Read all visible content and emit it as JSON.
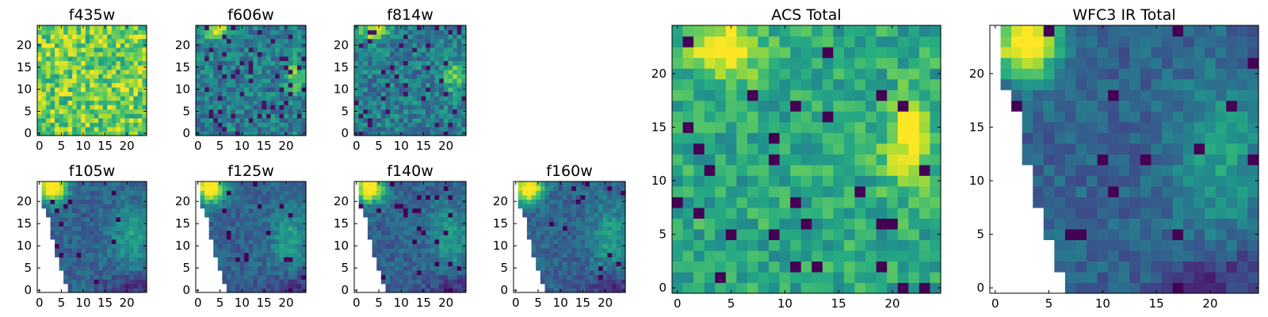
{
  "figure": {
    "colormap": "viridis",
    "colors": {
      "low": "#440154",
      "high": "#fde725",
      "missing": "#ffffff"
    }
  },
  "chart_data": [
    {
      "type": "heatmap",
      "title": "f435w",
      "xlim": [
        0,
        25
      ],
      "ylim": [
        0,
        25
      ],
      "xticks": [
        0,
        5,
        10,
        15,
        20
      ],
      "yticks": [
        0,
        5,
        10,
        15,
        20
      ],
      "pattern": "noise",
      "seed": 11
    },
    {
      "type": "heatmap",
      "title": "f606w",
      "xlim": [
        0,
        25
      ],
      "ylim": [
        0,
        25
      ],
      "xticks": [
        0,
        5,
        10,
        15,
        20
      ],
      "yticks": [
        0,
        5,
        10,
        15,
        20
      ],
      "pattern": "acs",
      "seed": 23
    },
    {
      "type": "heatmap",
      "title": "f814w",
      "xlim": [
        0,
        25
      ],
      "ylim": [
        0,
        25
      ],
      "xticks": [
        0,
        5,
        10,
        15,
        20
      ],
      "yticks": [
        0,
        5,
        10,
        15,
        20
      ],
      "pattern": "acs",
      "seed": 37
    },
    {
      "type": "heatmap",
      "title": "f105w",
      "xlim": [
        0,
        25
      ],
      "ylim": [
        0,
        25
      ],
      "xticks": [
        0,
        5,
        10,
        15,
        20
      ],
      "yticks": [
        0,
        5,
        10,
        15,
        20
      ],
      "pattern": "ir",
      "seed": 41
    },
    {
      "type": "heatmap",
      "title": "f125w",
      "xlim": [
        0,
        25
      ],
      "ylim": [
        0,
        25
      ],
      "xticks": [
        0,
        5,
        10,
        15,
        20
      ],
      "yticks": [
        0,
        5,
        10,
        15,
        20
      ],
      "pattern": "ir",
      "seed": 53
    },
    {
      "type": "heatmap",
      "title": "f140w",
      "xlim": [
        0,
        25
      ],
      "ylim": [
        0,
        25
      ],
      "xticks": [
        0,
        5,
        10,
        15,
        20
      ],
      "yticks": [
        0,
        5,
        10,
        15,
        20
      ],
      "pattern": "ir",
      "seed": 67
    },
    {
      "type": "heatmap",
      "title": "f160w",
      "xlim": [
        0,
        25
      ],
      "ylim": [
        0,
        25
      ],
      "xticks": [
        0,
        5,
        10,
        15,
        20
      ],
      "yticks": [
        0,
        5,
        10,
        15,
        20
      ],
      "pattern": "ir",
      "seed": 79
    },
    {
      "type": "heatmap",
      "title": "ACS Total",
      "xlim": [
        0,
        25
      ],
      "ylim": [
        0,
        25
      ],
      "xticks": [
        0,
        5,
        10,
        15,
        20
      ],
      "yticks": [
        0,
        5,
        10,
        15,
        20
      ],
      "pattern": "acs_total",
      "seed": 83
    },
    {
      "type": "heatmap",
      "title": "WFC3 IR Total",
      "xlim": [
        0,
        25
      ],
      "ylim": [
        0,
        25
      ],
      "xticks": [
        0,
        5,
        10,
        15,
        20
      ],
      "yticks": [
        0,
        5,
        10,
        15,
        20
      ],
      "pattern": "ir_total",
      "seed": 97
    }
  ]
}
